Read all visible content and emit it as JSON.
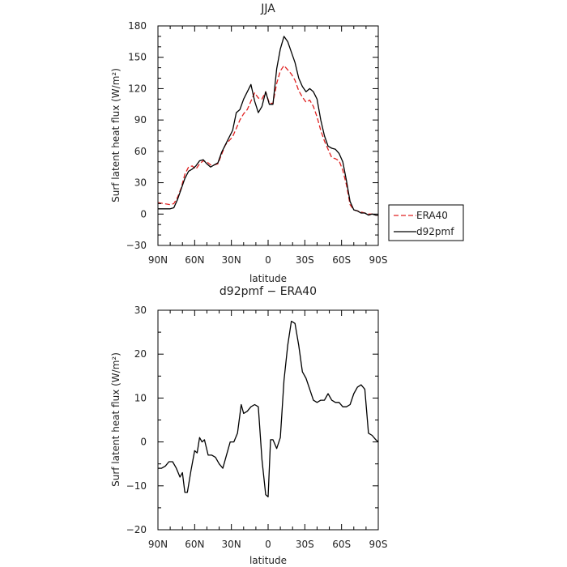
{
  "colors": {
    "era40": "#e02020",
    "d92pmf": "#000000",
    "axis": "#000000"
  },
  "chart_data": [
    {
      "type": "line",
      "title": "JJA",
      "xlabel": "latitude",
      "ylabel": "Surf latent heat flux (W/m²)",
      "xlim": [
        90,
        -90
      ],
      "ylim": [
        -30,
        180
      ],
      "xticks": [
        {
          "value": 90,
          "label": "90N"
        },
        {
          "value": 60,
          "label": "60N"
        },
        {
          "value": 30,
          "label": "30N"
        },
        {
          "value": 0,
          "label": "0"
        },
        {
          "value": -30,
          "label": "30S"
        },
        {
          "value": -60,
          "label": "60S"
        },
        {
          "value": -90,
          "label": "90S"
        }
      ],
      "yticks": [
        -30,
        0,
        30,
        60,
        90,
        120,
        150,
        180
      ],
      "legend": {
        "placement": "outside-right",
        "entries": [
          "ERA40",
          "d92pmf"
        ]
      },
      "series": [
        {
          "name": "ERA40",
          "style": "dashed",
          "x": [
            90,
            85,
            80,
            77,
            74,
            71,
            68,
            65,
            62,
            59,
            56,
            53,
            50,
            47,
            44,
            41,
            38,
            35,
            32,
            29,
            26,
            23,
            20,
            17,
            14,
            11,
            8,
            5,
            2,
            -1,
            -4,
            -7,
            -10,
            -13,
            -16,
            -19,
            -22,
            -25,
            -28,
            -31,
            -34,
            -37,
            -40,
            -43,
            -46,
            -49,
            -52,
            -55,
            -58,
            -61,
            -64,
            -67,
            -70,
            -73,
            -76,
            -79,
            -82,
            -85,
            -88,
            -90
          ],
          "y": [
            11,
            10,
            9,
            10,
            16,
            25,
            38,
            45,
            46,
            43,
            48,
            51,
            50,
            47,
            47,
            48,
            57,
            66,
            70,
            74,
            82,
            90,
            96,
            100,
            108,
            116,
            111,
            110,
            117,
            106,
            106,
            125,
            137,
            142,
            138,
            134,
            128,
            118,
            112,
            107,
            109,
            103,
            93,
            80,
            70,
            62,
            54,
            53,
            51,
            42,
            28,
            9,
            4,
            3,
            2,
            1,
            0,
            0,
            -1,
            -1
          ]
        },
        {
          "name": "d92pmf",
          "style": "solid",
          "x": [
            90,
            85,
            80,
            77,
            74,
            71,
            68,
            65,
            62,
            59,
            56,
            53,
            50,
            47,
            44,
            41,
            38,
            35,
            32,
            29,
            26,
            23,
            20,
            17,
            14,
            11,
            8,
            5,
            2,
            -1,
            -4,
            -7,
            -10,
            -13,
            -16,
            -19,
            -22,
            -25,
            -28,
            -31,
            -34,
            -37,
            -40,
            -43,
            -46,
            -49,
            -52,
            -55,
            -58,
            -61,
            -64,
            -67,
            -70,
            -73,
            -76,
            -79,
            -82,
            -85,
            -88,
            -90
          ],
          "y": [
            5,
            5,
            5,
            6,
            14,
            24,
            34,
            41,
            43,
            46,
            51,
            52,
            48,
            45,
            47,
            49,
            59,
            66,
            73,
            80,
            97,
            100,
            110,
            117,
            124,
            108,
            97,
            103,
            117,
            105,
            105,
            139,
            158,
            170,
            165,
            155,
            145,
            130,
            122,
            117,
            120,
            117,
            110,
            90,
            75,
            65,
            63,
            62,
            58,
            50,
            32,
            12,
            4,
            3,
            1,
            1,
            -1,
            0,
            -1,
            -1
          ]
        }
      ]
    },
    {
      "type": "line",
      "title": "d92pmf − ERA40",
      "xlabel": "latitude",
      "ylabel": "Surf latent heat flux (W/m²)",
      "xlim": [
        90,
        -90
      ],
      "ylim": [
        -20,
        30
      ],
      "xticks": [
        {
          "value": 90,
          "label": "90N"
        },
        {
          "value": 60,
          "label": "60N"
        },
        {
          "value": 30,
          "label": "30N"
        },
        {
          "value": 0,
          "label": "0"
        },
        {
          "value": -30,
          "label": "30S"
        },
        {
          "value": -60,
          "label": "60S"
        },
        {
          "value": -90,
          "label": "90S"
        }
      ],
      "yticks": [
        -20,
        -10,
        0,
        10,
        20,
        30
      ],
      "series": [
        {
          "name": "",
          "style": "solid",
          "x": [
            90,
            87,
            84,
            81,
            78,
            75,
            72,
            70,
            68,
            66,
            63,
            60,
            58,
            56,
            54,
            52,
            49,
            46,
            43,
            40,
            37,
            34,
            31,
            28,
            25,
            22,
            20,
            17,
            14,
            11,
            8,
            5,
            2,
            0,
            -2,
            -4,
            -7,
            -10,
            -13,
            -16,
            -19,
            -22,
            -25,
            -28,
            -31,
            -34,
            -37,
            -40,
            -43,
            -46,
            -49,
            -52,
            -55,
            -58,
            -61,
            -64,
            -67,
            -70,
            -73,
            -76,
            -79,
            -82,
            -85,
            -88,
            -90
          ],
          "y": [
            -6,
            -6,
            -5.5,
            -4.5,
            -4.5,
            -6,
            -8,
            -7,
            -11.5,
            -11.5,
            -6.5,
            -2,
            -2.5,
            1,
            0,
            0.5,
            -3,
            -3,
            -3.5,
            -5,
            -6,
            -3,
            0,
            0,
            2,
            8.5,
            6.5,
            7,
            8,
            8.5,
            8,
            -4,
            -12,
            -12.5,
            0.5,
            0.5,
            -1.5,
            1,
            14,
            22,
            27.5,
            27,
            22,
            16,
            14.5,
            12,
            9.5,
            9,
            9.5,
            9.5,
            11,
            9.5,
            9,
            9,
            8,
            8,
            8.5,
            11,
            12.5,
            13,
            12,
            2,
            1.5,
            0.5,
            0
          ]
        }
      ]
    }
  ]
}
